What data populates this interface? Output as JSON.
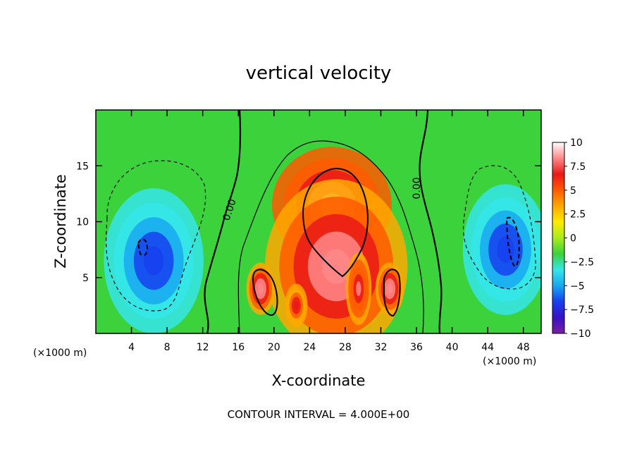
{
  "chart_data": {
    "type": "heatmap",
    "title": "vertical velocity",
    "xlabel": "X-coordinate",
    "ylabel": "Z-coordinate",
    "x_unit_label": "(×1000 m)",
    "x_unit_label_right": "(×1000 m)",
    "xlim": [
      0,
      50
    ],
    "ylim": [
      0,
      20
    ],
    "x_ticks": [
      4,
      8,
      12,
      16,
      20,
      24,
      28,
      32,
      36,
      40,
      44,
      48
    ],
    "x_tick_labels": [
      "4",
      "8",
      "12",
      "16",
      "20",
      "24",
      "28",
      "32",
      "36",
      "40",
      "44",
      "48"
    ],
    "y_ticks": [
      5,
      10,
      15
    ],
    "y_tick_labels": [
      "5",
      "10",
      "15"
    ],
    "colorbar": {
      "min": -10,
      "max": 10,
      "ticks": [
        10,
        7.5,
        5,
        2.5,
        0,
        -2.5,
        -5,
        -7.5,
        -10
      ],
      "tick_labels": [
        "10",
        "7.5",
        "5",
        "2.5",
        "0",
        "−2.5",
        "−5",
        "−7.5",
        "−10"
      ],
      "colors": [
        "#7a1fa2",
        "#3a10c8",
        "#1640f0",
        "#18a8f0",
        "#34e6ea",
        "#3cd23c",
        "#a8ec1e",
        "#ffec00",
        "#ffa800",
        "#ff5a00",
        "#ea1818",
        "#ff8888",
        "#ffffff"
      ]
    },
    "contour_interval_text": "CONTOUR INTERVAL = 4.000E+00",
    "contour_labels": [
      "0.00",
      "0.00"
    ],
    "features": [
      {
        "kind": "updraft",
        "x": 26.5,
        "z": 11.5,
        "sx": 4.2,
        "sz": 4.0,
        "w": 10
      },
      {
        "kind": "updraft",
        "x": 27.0,
        "z": 6.0,
        "sx": 5.0,
        "sz": 6.0,
        "w": 9
      },
      {
        "kind": "updraft",
        "x": 18.5,
        "z": 4.0,
        "sx": 1.0,
        "sz": 1.8,
        "w": 9
      },
      {
        "kind": "updraft",
        "x": 33.0,
        "z": 4.0,
        "sx": 1.0,
        "sz": 1.8,
        "w": 9
      },
      {
        "kind": "updraft",
        "x": 22.5,
        "z": 2.5,
        "sx": 0.8,
        "sz": 1.5,
        "w": 7
      },
      {
        "kind": "updraft",
        "x": 29.5,
        "z": 4.0,
        "sx": 0.9,
        "sz": 2.5,
        "w": 8
      },
      {
        "kind": "downdraft",
        "x": 6.5,
        "z": 6.5,
        "sx": 3.5,
        "sz": 5.0,
        "w": -7
      },
      {
        "kind": "downdraft",
        "x": 46.0,
        "z": 7.5,
        "sx": 3.0,
        "sz": 4.5,
        "w": -7
      }
    ]
  }
}
